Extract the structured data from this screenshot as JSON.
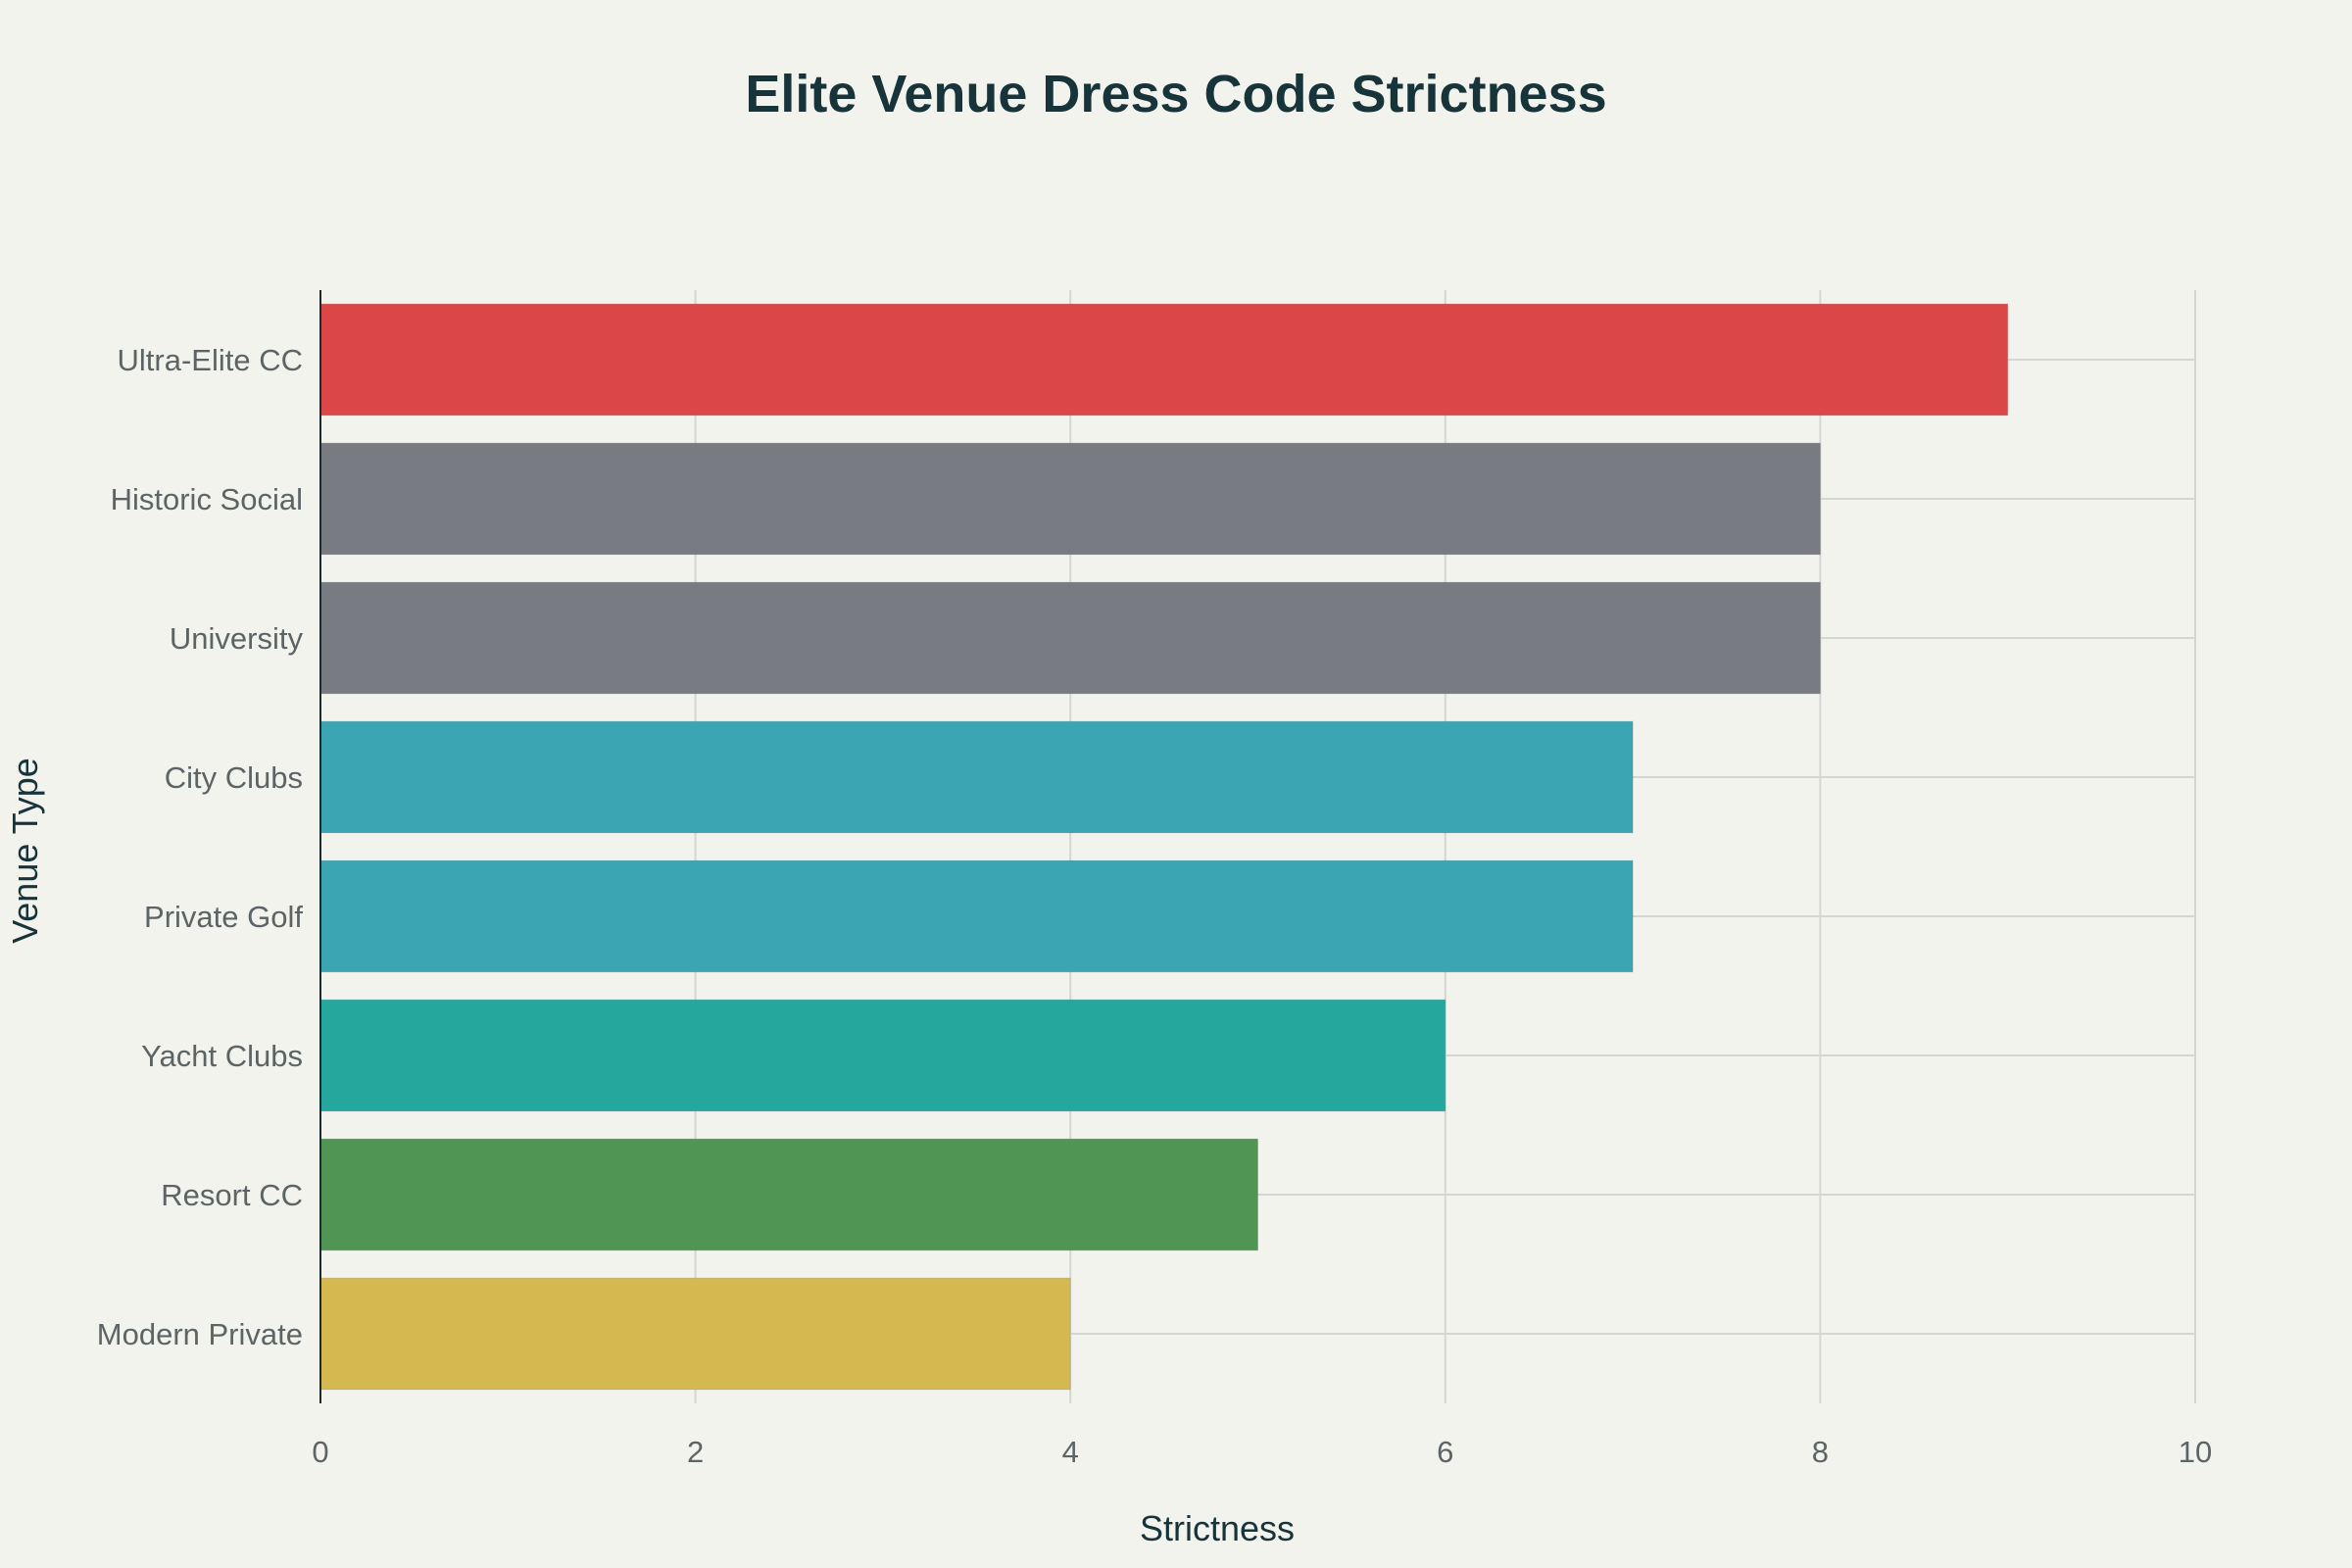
{
  "chart_data": {
    "type": "bar",
    "orientation": "horizontal",
    "title": "Elite Venue Dress Code Strictness",
    "xlabel": "Strictness",
    "ylabel": "Venue Type",
    "xlim": [
      0,
      10
    ],
    "xticks": [
      0,
      2,
      4,
      6,
      8,
      10
    ],
    "grid": true,
    "categories": [
      "Ultra-Elite CC",
      "Historic Social",
      "University",
      "City Clubs",
      "Private Golf",
      "Yacht Clubs",
      "Resort CC",
      "Modern Private"
    ],
    "values": [
      9,
      8,
      8,
      7,
      7,
      6,
      5,
      4
    ],
    "colors": [
      "#db4649",
      "#787b82",
      "#787b82",
      "#3ba5b4",
      "#3ba5b4",
      "#25a79e",
      "#519555",
      "#d3b94f"
    ]
  }
}
